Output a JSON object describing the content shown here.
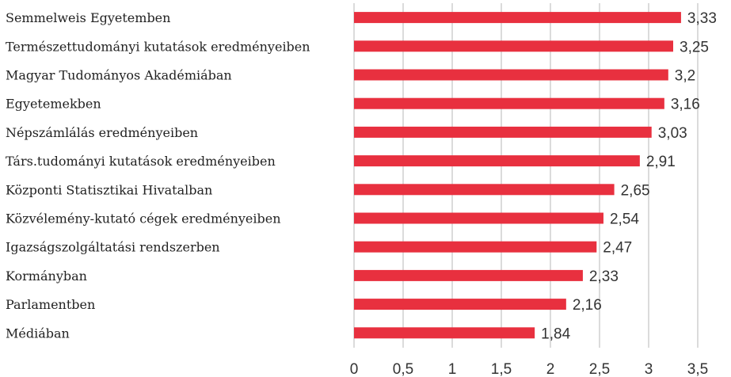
{
  "chart_data": {
    "type": "bar",
    "orientation": "horizontal",
    "categories": [
      "Semmelweis Egyetemben",
      "Természettudományi kutatások eredményeiben",
      "Magyar Tudományos Akadémiában",
      "Egyetemekben",
      "Népszámlálás eredményeiben",
      "Társ.tudományi kutatások eredményeiben",
      "Központi Statisztikai Hivatalban",
      "Közvélemény-kutató cégek eredményeiben",
      "Igazságszolgáltatási rendszerben",
      "Kormányban",
      "Parlamentben",
      "Médiában"
    ],
    "values": [
      3.33,
      3.25,
      3.2,
      3.16,
      3.03,
      2.91,
      2.65,
      2.54,
      2.47,
      2.33,
      2.16,
      1.84
    ],
    "value_labels": [
      "3,33",
      "3,25",
      "3,2",
      "3,16",
      "3,03",
      "2,91",
      "2,65",
      "2,54",
      "2,47",
      "2,33",
      "2,16",
      "1,84"
    ],
    "xlim": [
      0,
      3.5
    ],
    "x_ticks": [
      0,
      0.5,
      1,
      1.5,
      2,
      2.5,
      3,
      3.5
    ],
    "x_tick_labels": [
      "0",
      "0,5",
      "1",
      "1,5",
      "2",
      "2,5",
      "3",
      "3,5"
    ],
    "title": "",
    "xlabel": "",
    "ylabel": "",
    "grid": "vertical",
    "legend": "none",
    "bar_color": "#e8303f"
  }
}
